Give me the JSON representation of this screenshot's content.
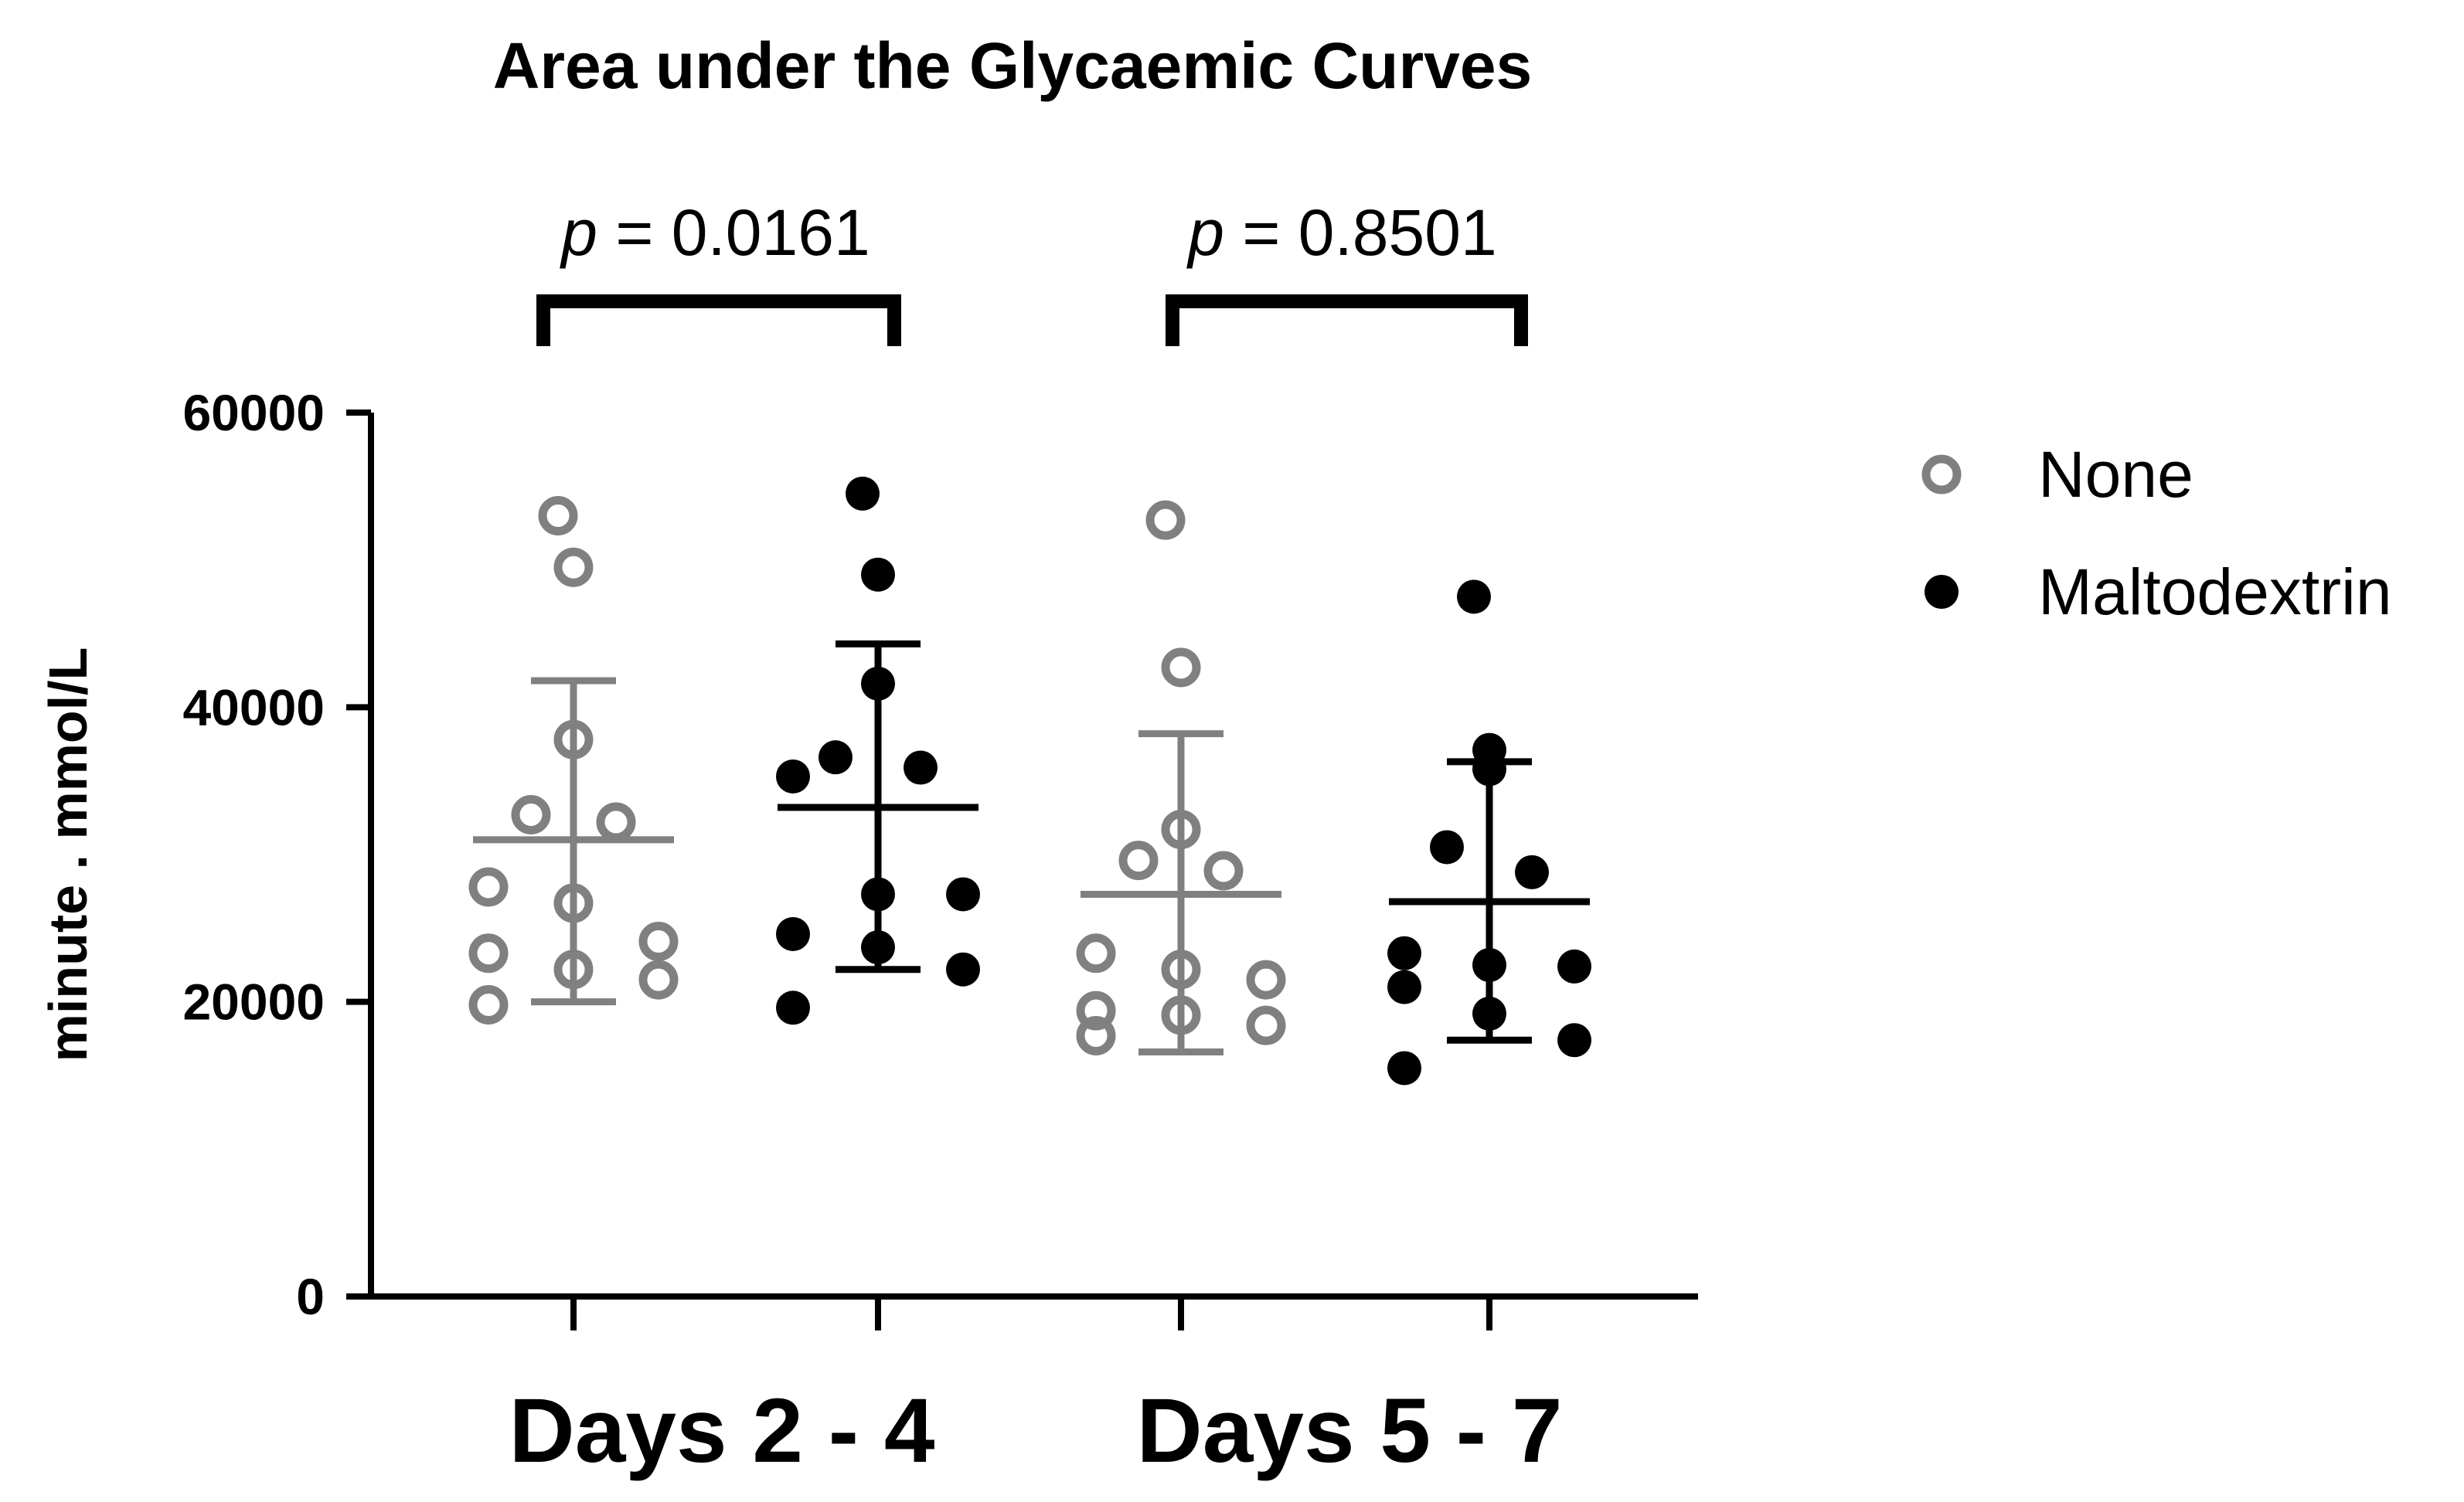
{
  "chart_data": {
    "type": "scatter",
    "title": "Area under the Glycaemic Curves",
    "ylabel": "minute . mmol/L",
    "xlabel": "",
    "ylim": [
      0,
      60000
    ],
    "yticks": [
      "0",
      "20000",
      "40000",
      "60000"
    ],
    "groups": [
      "Days 2 - 4",
      "Days 5 - 7"
    ],
    "comparisons": [
      {
        "group": "Days 2 - 4",
        "p_label": "p",
        "p_value": "= 0.0161"
      },
      {
        "group": "Days 5 - 7",
        "p_label": "p",
        "p_value": "= 0.8501"
      }
    ],
    "legend": {
      "position": "top-right"
    },
    "series": [
      {
        "name": "None",
        "marker": "open-circle",
        "color": "#808080",
        "groups": [
          {
            "group": "Days 2 - 4",
            "mean": 31000,
            "sd_low": 20000,
            "sd_high": 41800,
            "values": [
              53000,
              49500,
              37800,
              32700,
              32200,
              27800,
              26700,
              24100,
              23300,
              22200,
              21500,
              19800
            ]
          },
          {
            "group": "Days 5 - 7",
            "mean": 27300,
            "sd_low": 16600,
            "sd_high": 38200,
            "values": [
              52700,
              42700,
              31700,
              29600,
              28900,
              23300,
              22200,
              21500,
              19400,
              19100,
              18400,
              17700
            ]
          }
        ]
      },
      {
        "name": "Maltodextrin",
        "marker": "filled-circle",
        "color": "#000000",
        "groups": [
          {
            "group": "Days 2 - 4",
            "mean": 33200,
            "sd_low": 22200,
            "sd_high": 44300,
            "values": [
              54500,
              49000,
              41600,
              36600,
              35900,
              35300,
              27300,
              27300,
              24600,
              23700,
              22200,
              19600
            ]
          },
          {
            "group": "Days 5 - 7",
            "mean": 26800,
            "sd_low": 17400,
            "sd_high": 36300,
            "values": [
              47500,
              37100,
              35800,
              30500,
              28800,
              23300,
              22500,
              22400,
              21000,
              19200,
              17400,
              15500
            ]
          }
        ]
      }
    ]
  }
}
